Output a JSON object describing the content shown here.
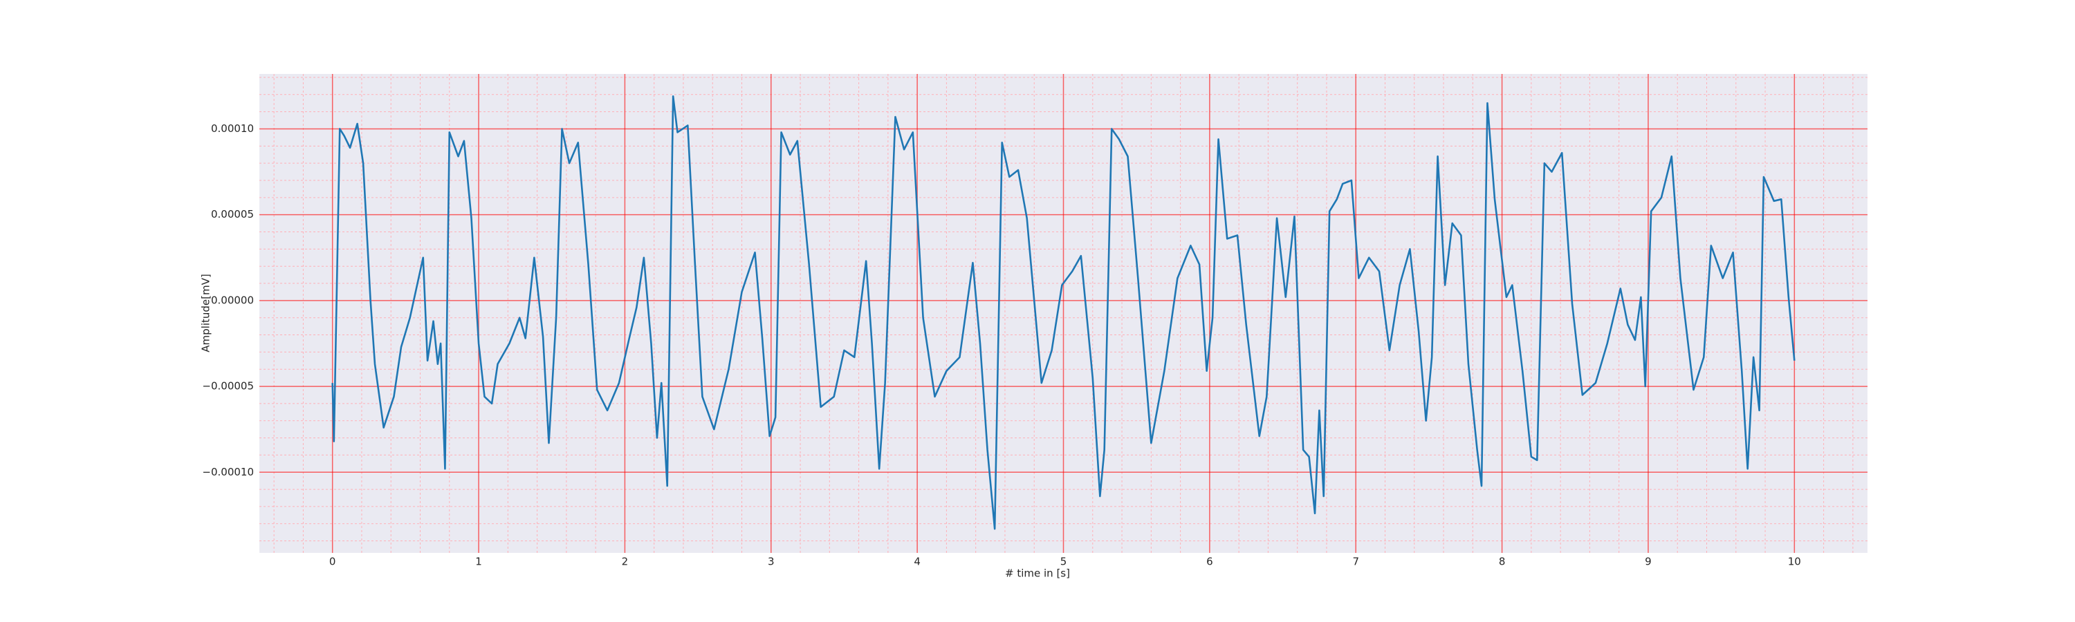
{
  "chart_data": {
    "type": "line",
    "xlabel": "# time in [s]",
    "ylabel": "Amplitude[mV]",
    "xlim": [
      -0.5,
      10.5
    ],
    "ylim": [
      -0.000147,
      0.000132
    ],
    "xticks": [
      0,
      1,
      2,
      3,
      4,
      5,
      6,
      7,
      8,
      9,
      10
    ],
    "yticks": [
      {
        "value": -0.0001,
        "label": "−0.00010"
      },
      {
        "value": -5e-05,
        "label": "−0.00005"
      },
      {
        "value": 0,
        "label": "0.00000"
      },
      {
        "value": 5e-05,
        "label": "0.00005"
      },
      {
        "value": 0.0001,
        "label": "0.00010"
      }
    ],
    "xminorticks": [
      -0.4,
      -0.2,
      0.2,
      0.4,
      0.6,
      0.8,
      1.2,
      1.4,
      1.6,
      1.8,
      2.2,
      2.4,
      2.6,
      2.8,
      3.2,
      3.4,
      3.6,
      3.8,
      4.2,
      4.4,
      4.6,
      4.8,
      5.2,
      5.4,
      5.6,
      5.8,
      6.2,
      6.4,
      6.6,
      6.8,
      7.2,
      7.4,
      7.6,
      7.8,
      8.2,
      8.4,
      8.6,
      8.8,
      9.2,
      9.4,
      9.6,
      9.8,
      10.2,
      10.4
    ],
    "yminorticks": [
      -0.00014,
      -0.00013,
      -0.00012,
      -0.00011,
      -9e-05,
      -8e-05,
      -7e-05,
      -6e-05,
      -4e-05,
      -3e-05,
      -2e-05,
      -1e-05,
      1e-05,
      2e-05,
      3e-05,
      4e-05,
      6e-05,
      7e-05,
      8e-05,
      9e-05,
      0.00011,
      0.00012,
      0.00013
    ],
    "grid": true,
    "minor_grid": true,
    "grid_color": "#ff0000",
    "minor_grid_color": "#ffb0b8",
    "background": "#eaeaf2",
    "color": "#1f77b4",
    "x": [
      0,
      0.01,
      0.05,
      0.08,
      0.12,
      0.17,
      0.21,
      0.26,
      0.29,
      0.35,
      0.42,
      0.47,
      0.53,
      0.62,
      0.65,
      0.69,
      0.72,
      0.74,
      0.77,
      0.8,
      0.86,
      0.9,
      0.95,
      1.0,
      1.04,
      1.09,
      1.13,
      1.21,
      1.28,
      1.32,
      1.38,
      1.44,
      1.48,
      1.53,
      1.57,
      1.62,
      1.68,
      1.75,
      1.81,
      1.88,
      1.96,
      2.03,
      2.08,
      2.13,
      2.18,
      2.22,
      2.25,
      2.29,
      2.33,
      2.36,
      2.43,
      2.48,
      2.53,
      2.61,
      2.71,
      2.8,
      2.89,
      2.94,
      2.99,
      3.03,
      3.07,
      3.13,
      3.18,
      3.26,
      3.34,
      3.43,
      3.5,
      3.57,
      3.65,
      3.69,
      3.74,
      3.78,
      3.85,
      3.91,
      3.97,
      4.04,
      4.12,
      4.2,
      4.29,
      4.38,
      4.43,
      4.48,
      4.53,
      4.58,
      4.63,
      4.69,
      4.75,
      4.85,
      4.92,
      4.99,
      5.06,
      5.12,
      5.2,
      5.25,
      5.28,
      5.33,
      5.38,
      5.44,
      5.51,
      5.6,
      5.69,
      5.78,
      5.87,
      5.93,
      5.98,
      6.02,
      6.06,
      6.12,
      6.19,
      6.25,
      6.34,
      6.39,
      6.46,
      6.52,
      6.58,
      6.64,
      6.68,
      6.72,
      6.75,
      6.78,
      6.82,
      6.87,
      6.91,
      6.97,
      7.02,
      7.09,
      7.16,
      7.23,
      7.3,
      7.37,
      7.43,
      7.48,
      7.52,
      7.56,
      7.61,
      7.66,
      7.72,
      7.77,
      7.83,
      7.86,
      7.9,
      7.95,
      8.03,
      8.07,
      8.14,
      8.2,
      8.24,
      8.29,
      8.34,
      8.41,
      8.48,
      8.55,
      8.64,
      8.72,
      8.81,
      8.86,
      8.91,
      8.95,
      8.98,
      9.02,
      9.09,
      9.16,
      9.22,
      9.31,
      9.38,
      9.43,
      9.51,
      9.58,
      9.64,
      9.68,
      9.72,
      9.76,
      9.79,
      9.86,
      9.91,
      9.96,
      10.0
    ],
    "values": [
      -4.8e-05,
      -8.2e-05,
      0.0001,
      9.6e-05,
      8.9e-05,
      0.000103,
      8e-05,
      0.0,
      -3.7e-05,
      -7.4e-05,
      -5.6e-05,
      -2.7e-05,
      -1e-05,
      2.5e-05,
      -3.5e-05,
      -1.2e-05,
      -3.7e-05,
      -2.5e-05,
      -9.8e-05,
      9.8e-05,
      8.4e-05,
      9.3e-05,
      4.8e-05,
      -2.5e-05,
      -5.6e-05,
      -6e-05,
      -3.7e-05,
      -2.5e-05,
      -1e-05,
      -2.2e-05,
      2.5e-05,
      -2.1e-05,
      -8.3e-05,
      -1e-05,
      0.0001,
      8e-05,
      9.2e-05,
      2.1e-05,
      -5.2e-05,
      -6.4e-05,
      -4.8e-05,
      -2.2e-05,
      -4e-06,
      2.5e-05,
      -2.5e-05,
      -8e-05,
      -4.8e-05,
      -0.000108,
      0.000119,
      9.8e-05,
      0.000102,
      2.1e-05,
      -5.6e-05,
      -7.5e-05,
      -4e-05,
      5e-06,
      2.8e-05,
      -2.2e-05,
      -7.9e-05,
      -6.8e-05,
      9.8e-05,
      8.5e-05,
      9.3e-05,
      2.1e-05,
      -6.2e-05,
      -5.6e-05,
      -2.9e-05,
      -3.3e-05,
      2.3e-05,
      -2.5e-05,
      -9.8e-05,
      -4.8e-05,
      0.000107,
      8.8e-05,
      9.8e-05,
      -1e-05,
      -5.6e-05,
      -4.1e-05,
      -3.3e-05,
      2.2e-05,
      -2.5e-05,
      -8.7e-05,
      -0.000133,
      9.2e-05,
      7.2e-05,
      7.6e-05,
      4.8e-05,
      -4.8e-05,
      -2.9e-05,
      9e-06,
      1.7e-05,
      2.6e-05,
      -4.5e-05,
      -0.000114,
      -8.7e-05,
      0.0001,
      9.4e-05,
      8.4e-05,
      1.3e-05,
      -8.3e-05,
      -4.1e-05,
      1.3e-05,
      3.2e-05,
      2.1e-05,
      -4.1e-05,
      -1e-05,
      9.4e-05,
      3.6e-05,
      3.8e-05,
      -1.4e-05,
      -7.9e-05,
      -5.6e-05,
      4.8e-05,
      2e-06,
      4.9e-05,
      -8.7e-05,
      -9.1e-05,
      -0.000124,
      -6.4e-05,
      -0.000114,
      5.2e-05,
      5.9e-05,
      6.8e-05,
      7e-05,
      1.3e-05,
      2.5e-05,
      1.7e-05,
      -2.9e-05,
      9e-06,
      3e-05,
      -1.8e-05,
      -7e-05,
      -3.3e-05,
      8.4e-05,
      9e-06,
      4.5e-05,
      3.8e-05,
      -3.7e-05,
      -8.7e-05,
      -0.000108,
      0.000115,
      5.9e-05,
      2e-06,
      9e-06,
      -4.1e-05,
      -9.1e-05,
      -9.3e-05,
      8e-05,
      7.5e-05,
      8.6e-05,
      -2e-06,
      -5.5e-05,
      -4.8e-05,
      -2.5e-05,
      7e-06,
      -1.4e-05,
      -2.3e-05,
      2e-06,
      -5e-05,
      5.2e-05,
      6e-05,
      8.4e-05,
      1.3e-05,
      -5.2e-05,
      -3.3e-05,
      3.2e-05,
      1.3e-05,
      2.8e-05,
      -4.1e-05,
      -9.8e-05,
      -3.3e-05,
      -6.4e-05,
      7.2e-05,
      5.8e-05,
      5.9e-05,
      2e-06,
      -3.5e-05
    ]
  }
}
